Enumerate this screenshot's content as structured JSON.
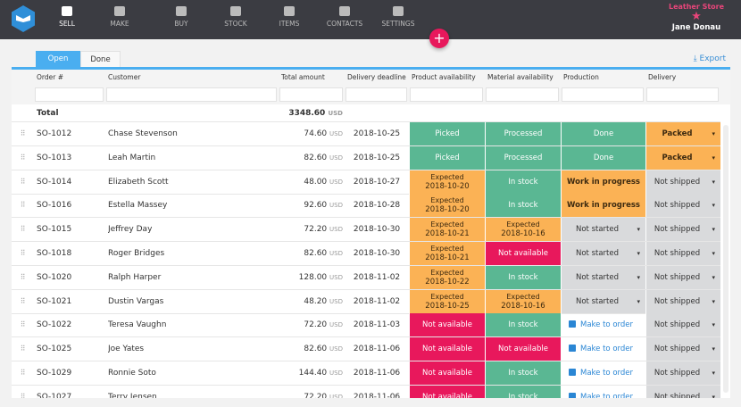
{
  "nav": {
    "items": [
      {
        "label": "SELL",
        "icon": "shop-icon",
        "active": true
      },
      {
        "label": "MAKE",
        "icon": "hammer-icon"
      },
      {
        "label": "BUY",
        "icon": "basket-icon"
      },
      {
        "label": "STOCK",
        "icon": "boxes-icon"
      },
      {
        "label": "ITEMS",
        "icon": "item-icon"
      },
      {
        "label": "CONTACTS",
        "icon": "people-icon"
      },
      {
        "label": "SETTINGS",
        "icon": "gear-icon"
      }
    ],
    "store": "Leather Store",
    "user": "Jane Donau",
    "fab": "+"
  },
  "tabs": [
    "Open",
    "Done"
  ],
  "export": "⤓ Export",
  "columns": [
    "Order #",
    "Customer",
    "Total amount",
    "Delivery deadline",
    "Product availability",
    "Material availability",
    "Production",
    "Delivery"
  ],
  "total": {
    "label": "Total",
    "amount": "3348.60",
    "currency": "USD"
  },
  "colors": {
    "green": "#5ab793",
    "orange": "#fbb255",
    "red": "#e8185c",
    "gray": "#d9dadc",
    "accent": "#4aaef0"
  },
  "rows": [
    {
      "order": "SO-1012",
      "customer": "Chase Stevenson",
      "amount": "74.60",
      "deadline": "2018-10-25",
      "product": [
        "g",
        "Picked"
      ],
      "material": [
        "g",
        "Processed"
      ],
      "production": [
        "g",
        "Done"
      ],
      "delivery": [
        "o",
        "Packed"
      ]
    },
    {
      "order": "SO-1013",
      "customer": "Leah Martin",
      "amount": "82.60",
      "deadline": "2018-10-25",
      "product": [
        "g",
        "Picked"
      ],
      "material": [
        "g",
        "Processed"
      ],
      "production": [
        "g",
        "Done"
      ],
      "delivery": [
        "o",
        "Packed"
      ]
    },
    {
      "order": "SO-1014",
      "customer": "Elizabeth Scott",
      "amount": "48.00",
      "deadline": "2018-10-27",
      "product": [
        "oe",
        "Expected",
        "2018-10-20"
      ],
      "material": [
        "g",
        "In stock"
      ],
      "production": [
        "o",
        "Work in progress"
      ],
      "delivery": [
        "gr",
        "Not shipped"
      ]
    },
    {
      "order": "SO-1016",
      "customer": "Estella Massey",
      "amount": "92.60",
      "deadline": "2018-10-28",
      "product": [
        "oe",
        "Expected",
        "2018-10-20"
      ],
      "material": [
        "g",
        "In stock"
      ],
      "production": [
        "o",
        "Work in progress"
      ],
      "delivery": [
        "gr",
        "Not shipped"
      ]
    },
    {
      "order": "SO-1015",
      "customer": "Jeffrey Day",
      "amount": "72.20",
      "deadline": "2018-10-30",
      "product": [
        "oe",
        "Expected",
        "2018-10-21"
      ],
      "material": [
        "oe",
        "Expected",
        "2018-10-16"
      ],
      "production": [
        "gr",
        "Not started"
      ],
      "delivery": [
        "gr",
        "Not shipped"
      ]
    },
    {
      "order": "SO-1018",
      "customer": "Roger Bridges",
      "amount": "82.60",
      "deadline": "2018-10-30",
      "product": [
        "oe",
        "Expected",
        "2018-10-21"
      ],
      "material": [
        "r",
        "Not available"
      ],
      "production": [
        "gr",
        "Not started"
      ],
      "delivery": [
        "gr",
        "Not shipped"
      ]
    },
    {
      "order": "SO-1020",
      "customer": "Ralph Harper",
      "amount": "128.00",
      "deadline": "2018-11-02",
      "product": [
        "oe",
        "Expected",
        "2018-10-22"
      ],
      "material": [
        "g",
        "In stock"
      ],
      "production": [
        "gr",
        "Not started"
      ],
      "delivery": [
        "gr",
        "Not shipped"
      ]
    },
    {
      "order": "SO-1021",
      "customer": "Dustin Vargas",
      "amount": "48.20",
      "deadline": "2018-11-02",
      "product": [
        "oe",
        "Expected",
        "2018-10-25"
      ],
      "material": [
        "oe",
        "Expected",
        "2018-10-16"
      ],
      "production": [
        "gr",
        "Not started"
      ],
      "delivery": [
        "gr",
        "Not shipped"
      ]
    },
    {
      "order": "SO-1022",
      "customer": "Teresa Vaughn",
      "amount": "72.20",
      "deadline": "2018-11-03",
      "product": [
        "r",
        "Not available"
      ],
      "material": [
        "g",
        "In stock"
      ],
      "production": [
        "l",
        "Make to order"
      ],
      "delivery": [
        "gr",
        "Not shipped"
      ]
    },
    {
      "order": "SO-1025",
      "customer": "Joe Yates",
      "amount": "82.60",
      "deadline": "2018-11-06",
      "product": [
        "r",
        "Not available"
      ],
      "material": [
        "r",
        "Not available"
      ],
      "production": [
        "l",
        "Make to order"
      ],
      "delivery": [
        "gr",
        "Not shipped"
      ]
    },
    {
      "order": "SO-1029",
      "customer": "Ronnie Soto",
      "amount": "144.40",
      "deadline": "2018-11-06",
      "product": [
        "r",
        "Not available"
      ],
      "material": [
        "g",
        "In stock"
      ],
      "production": [
        "l",
        "Make to order"
      ],
      "delivery": [
        "gr",
        "Not shipped"
      ]
    },
    {
      "order": "SO-1027",
      "customer": "Terry Jensen",
      "amount": "72.20",
      "deadline": "2018-11-06",
      "product": [
        "r",
        "Not available"
      ],
      "material": [
        "g",
        "In stock"
      ],
      "production": [
        "l",
        "Make to order"
      ],
      "delivery": [
        "gr",
        "Not shipped"
      ]
    }
  ]
}
